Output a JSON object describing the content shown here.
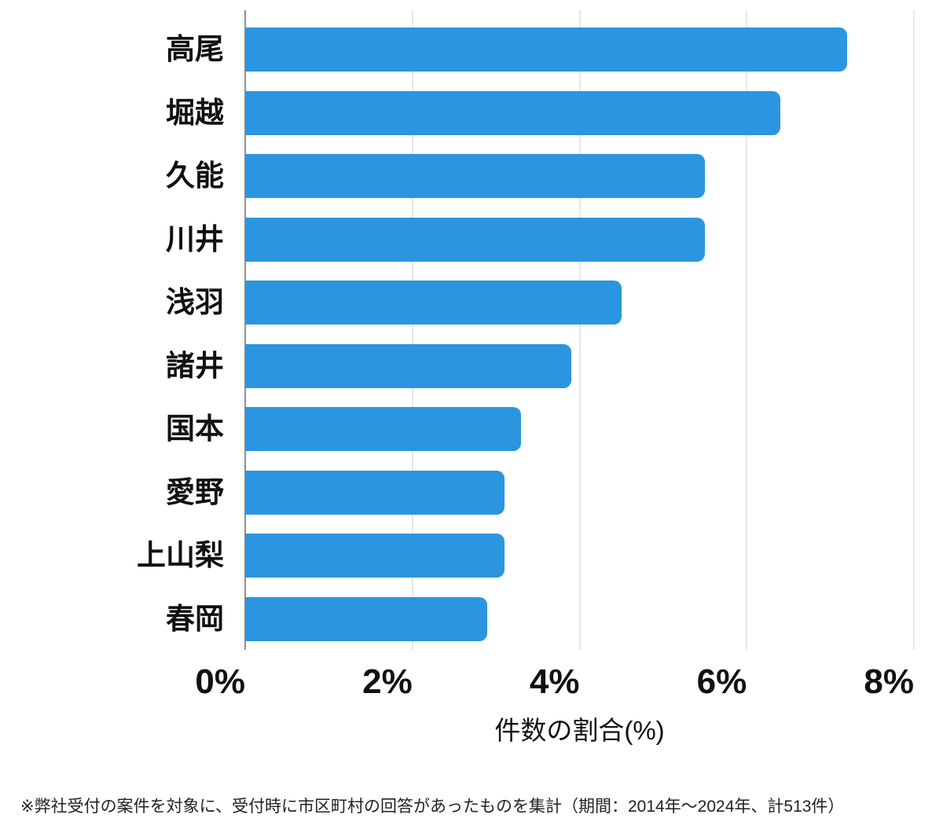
{
  "chart_data": {
    "type": "bar",
    "orientation": "horizontal",
    "title": "",
    "categories": [
      "高尾",
      "堀越",
      "久能",
      "川井",
      "浅羽",
      "諸井",
      "国本",
      "愛野",
      "上山梨",
      "春岡"
    ],
    "values": [
      7.2,
      6.4,
      5.5,
      5.5,
      4.5,
      3.9,
      3.3,
      3.1,
      3.1,
      2.9
    ],
    "xlabel": "件数の割合(%)",
    "ylabel": "",
    "xticks": [
      "0%",
      "2%",
      "4%",
      "6%",
      "8%"
    ],
    "xtick_values": [
      0,
      2,
      4,
      6,
      8
    ],
    "xlim": [
      0,
      8
    ],
    "grid": true,
    "bar_color": "#2b95e0",
    "gridline_color": "#e7e7e7",
    "axis_line_color": "#8f8f8f"
  },
  "footnote": "※弊社受付の案件を対象に、受付時に市区町村の回答があったものを集計（期間：2014年〜2024年、計513件）"
}
